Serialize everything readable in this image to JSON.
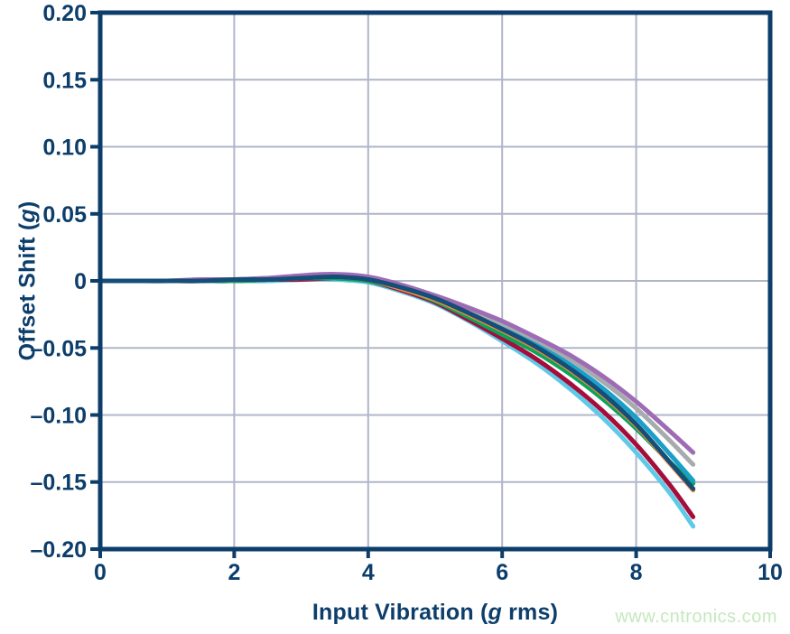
{
  "colors": {
    "axis": "#0d3e6b",
    "grid": "#b0b5c8",
    "background": "#ffffff",
    "watermark": "#c5e8bd"
  },
  "watermark": {
    "text": "www.cntronics.com"
  },
  "chart_data": {
    "type": "line",
    "title": "",
    "xlabel": "Input Vibration (g rms)",
    "ylabel": "Offset Shift (g)",
    "xlabel_parts": [
      "Input Vibration (",
      "g",
      " rms)"
    ],
    "ylabel_parts": [
      "Offset Shift (",
      "g",
      ")"
    ],
    "xlim": [
      0,
      10
    ],
    "ylim": [
      -0.2,
      0.2
    ],
    "grid_on": true,
    "legend": "none",
    "x_ticks": [
      {
        "value": 0,
        "label": "0"
      },
      {
        "value": 2,
        "label": "2"
      },
      {
        "value": 4,
        "label": "4"
      },
      {
        "value": 6,
        "label": "6"
      },
      {
        "value": 8,
        "label": "8"
      },
      {
        "value": 10,
        "label": "10"
      }
    ],
    "y_ticks": [
      {
        "value": 0.2,
        "label": "0.20"
      },
      {
        "value": 0.15,
        "label": "0.15"
      },
      {
        "value": 0.1,
        "label": "0.10"
      },
      {
        "value": 0.05,
        "label": "0.05"
      },
      {
        "value": 0,
        "label": "0"
      },
      {
        "value": -0.05,
        "label": "–0.05"
      },
      {
        "value": -0.1,
        "label": "–0.10"
      },
      {
        "value": -0.15,
        "label": "–0.15"
      },
      {
        "value": -0.2,
        "label": "–0.20"
      }
    ],
    "grid": {
      "x_values": [
        2,
        4,
        6,
        8
      ],
      "y_values": [
        -0.15,
        -0.1,
        -0.05,
        0,
        0.05,
        0.1,
        0.15
      ]
    },
    "x": [
      0,
      0.5,
      1,
      1.5,
      2,
      2.5,
      3,
      3.5,
      4,
      4.5,
      5,
      5.5,
      6,
      6.5,
      7,
      7.5,
      8,
      8.5,
      8.85
    ],
    "series": [
      {
        "name": "light-blue",
        "color": "#5fc9e8",
        "values": [
          0,
          0,
          0,
          0,
          0,
          0,
          0.001,
          0.001,
          -0.001,
          -0.008,
          -0.017,
          -0.03,
          -0.045,
          -0.061,
          -0.08,
          -0.102,
          -0.128,
          -0.158,
          -0.183
        ]
      },
      {
        "name": "dark-red",
        "color": "#a50d3b",
        "values": [
          0,
          0,
          0,
          0,
          0,
          0.001,
          0.001,
          0.002,
          0,
          -0.007,
          -0.016,
          -0.029,
          -0.043,
          -0.058,
          -0.076,
          -0.097,
          -0.122,
          -0.152,
          -0.176
        ]
      },
      {
        "name": "green",
        "color": "#0ca459",
        "values": [
          0,
          0,
          0,
          0,
          0,
          0.001,
          0.002,
          0.002,
          0,
          -0.006,
          -0.015,
          -0.027,
          -0.04,
          -0.053,
          -0.069,
          -0.088,
          -0.11,
          -0.135,
          -0.151
        ]
      },
      {
        "name": "orange",
        "color": "#f58a3c",
        "values": [
          0,
          0,
          0,
          0,
          0.001,
          0.001,
          0.002,
          0.003,
          0.001,
          -0.006,
          -0.014,
          -0.025,
          -0.037,
          -0.05,
          -0.066,
          -0.085,
          -0.108,
          -0.136,
          -0.156
        ]
      },
      {
        "name": "teal",
        "color": "#1aa0c8",
        "values": [
          0,
          0,
          0,
          0,
          0.001,
          0.002,
          0.003,
          0.003,
          0.002,
          -0.005,
          -0.013,
          -0.023,
          -0.034,
          -0.047,
          -0.062,
          -0.08,
          -0.102,
          -0.129,
          -0.149
        ]
      },
      {
        "name": "gray",
        "color": "#a8abae",
        "values": [
          0,
          0,
          0,
          0.001,
          0.001,
          0.002,
          0.003,
          0.004,
          0.002,
          -0.004,
          -0.012,
          -0.021,
          -0.032,
          -0.044,
          -0.058,
          -0.075,
          -0.095,
          -0.119,
          -0.137
        ]
      },
      {
        "name": "purple",
        "color": "#9d6cb5",
        "values": [
          0,
          0,
          0,
          0.001,
          0.001,
          0.002,
          0.004,
          0.005,
          0.003,
          -0.003,
          -0.011,
          -0.02,
          -0.03,
          -0.042,
          -0.055,
          -0.071,
          -0.09,
          -0.112,
          -0.128
        ]
      },
      {
        "name": "navy",
        "color": "#154e78",
        "values": [
          0,
          0,
          0,
          0,
          0.001,
          0.001,
          0.002,
          0.003,
          0.001,
          -0.005,
          -0.013,
          -0.024,
          -0.036,
          -0.049,
          -0.065,
          -0.084,
          -0.107,
          -0.135,
          -0.155
        ]
      }
    ]
  }
}
